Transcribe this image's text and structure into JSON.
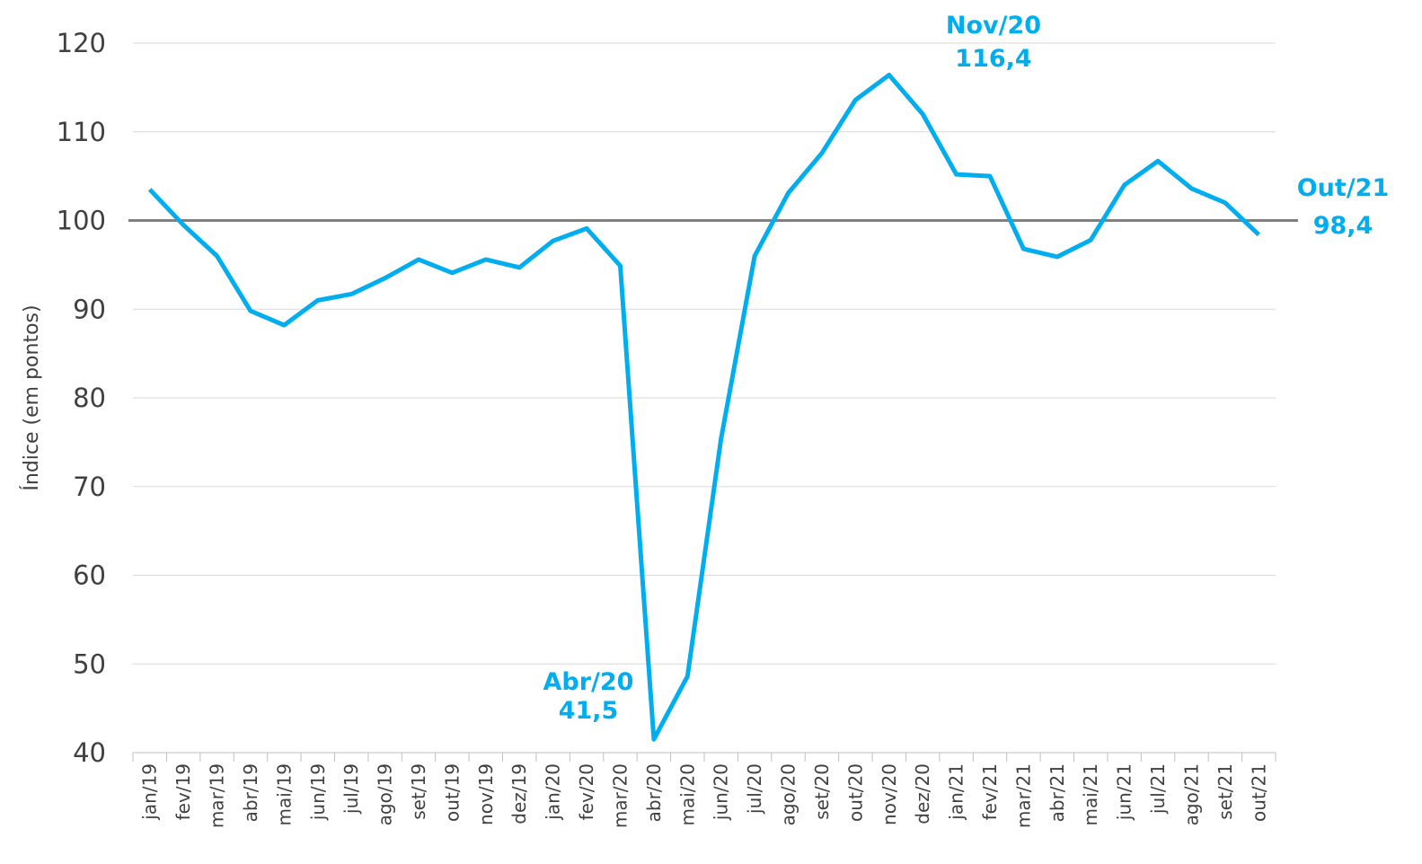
{
  "chart_data": {
    "type": "line",
    "y_axis_label": "Índice (em pontos)",
    "categories": [
      "jan/19",
      "fev/19",
      "mar/19",
      "abr/19",
      "mai/19",
      "jun/19",
      "jul/19",
      "ago/19",
      "set/19",
      "out/19",
      "nov/19",
      "dez/19",
      "jan/20",
      "fev/20",
      "mar/20",
      "abr/20",
      "mai/20",
      "jun/20",
      "jul/20",
      "ago/20",
      "set/20",
      "out/20",
      "nov/20",
      "dez/20",
      "jan/21",
      "fev/21",
      "mar/21",
      "abr/21",
      "mai/21",
      "jun/21",
      "jul/21",
      "ago/21",
      "set/21",
      "out/21"
    ],
    "series": [
      {
        "name": "Índice",
        "color": "#00aeef",
        "values": [
          103.5,
          99.5,
          96,
          89.8,
          88.2,
          91,
          91.7,
          93.5,
          95.6,
          94.1,
          95.6,
          94.7,
          97.7,
          99.1,
          94.9,
          41.5,
          48.6,
          75.4,
          96,
          103.1,
          107.6,
          113.6,
          116.4,
          112,
          105.2,
          105,
          96.8,
          95.9,
          97.8,
          104,
          106.7,
          103.6,
          102,
          98.4
        ]
      }
    ],
    "reference_line": {
      "value": 100,
      "color": "#808080"
    },
    "annotations": [
      {
        "title": "Abr/20",
        "label": "41,5"
      },
      {
        "title": "Nov/20",
        "label": "116,4"
      },
      {
        "title": "Out/21",
        "label": "98,4"
      }
    ],
    "ylim": [
      40,
      120
    ],
    "yticks": [
      40,
      50,
      60,
      70,
      80,
      90,
      100,
      110,
      120
    ],
    "grid": true
  }
}
